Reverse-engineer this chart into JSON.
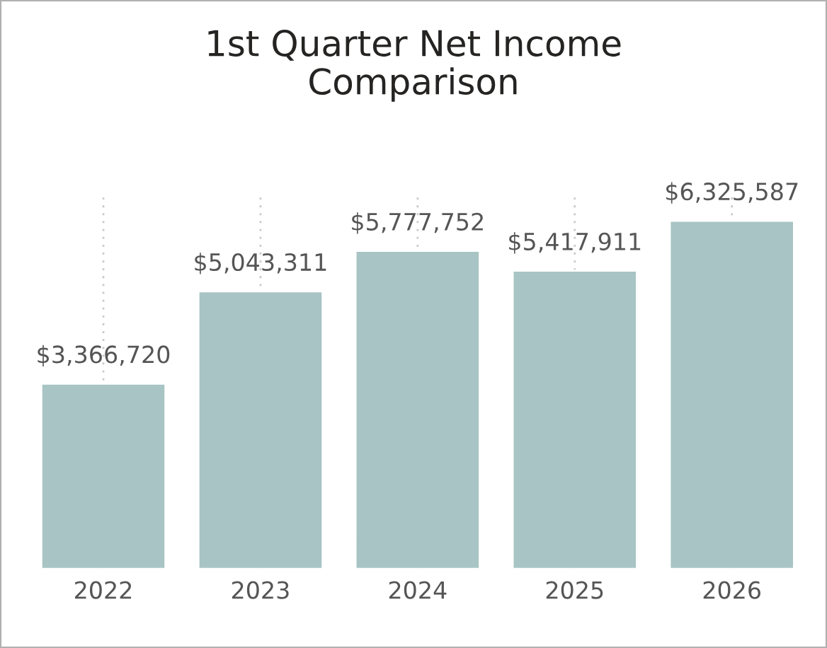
{
  "chart_data": {
    "type": "bar",
    "title": "1st Quarter Net Income\nComparison",
    "categories": [
      "2022",
      "2023",
      "2024",
      "2025",
      "2026"
    ],
    "values": [
      3366720,
      5043311,
      5777752,
      5417911,
      6325587
    ],
    "value_labels": [
      "$3,366,720",
      "$5,043,311",
      "$5,777,752",
      "$5,417,911",
      "$6,325,587"
    ],
    "color": "#a8c4c4",
    "grid": "x"
  }
}
